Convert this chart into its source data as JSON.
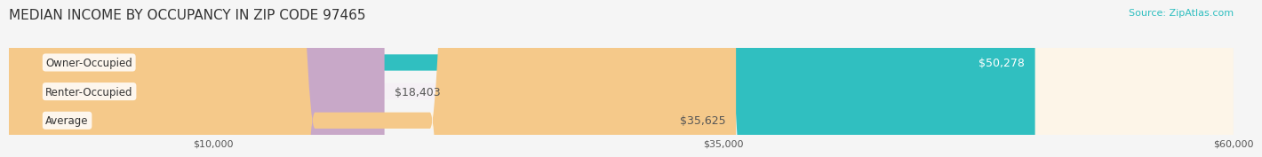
{
  "title": "MEDIAN INCOME BY OCCUPANCY IN ZIP CODE 97465",
  "source": "Source: ZipAtlas.com",
  "categories": [
    "Owner-Occupied",
    "Renter-Occupied",
    "Average"
  ],
  "values": [
    50278,
    18403,
    35625
  ],
  "labels": [
    "$50,278",
    "$18,403",
    "$35,625"
  ],
  "bar_colors": [
    "#30BFC0",
    "#C8A8C8",
    "#F5C98A"
  ],
  "bar_bg_colors": [
    "#E8F8F8",
    "#F5F0F5",
    "#FDF5E8"
  ],
  "label_colors": [
    "#ffffff",
    "#555555",
    "#555555"
  ],
  "xlim": [
    0,
    60000
  ],
  "xticks": [
    10000,
    35000,
    60000
  ],
  "xtick_labels": [
    "$10,000",
    "$35,000",
    "$60,000"
  ],
  "background_color": "#f5f5f5",
  "bar_height": 0.55,
  "title_fontsize": 11,
  "source_fontsize": 8,
  "label_fontsize": 9,
  "tick_fontsize": 8,
  "cat_fontsize": 8.5
}
